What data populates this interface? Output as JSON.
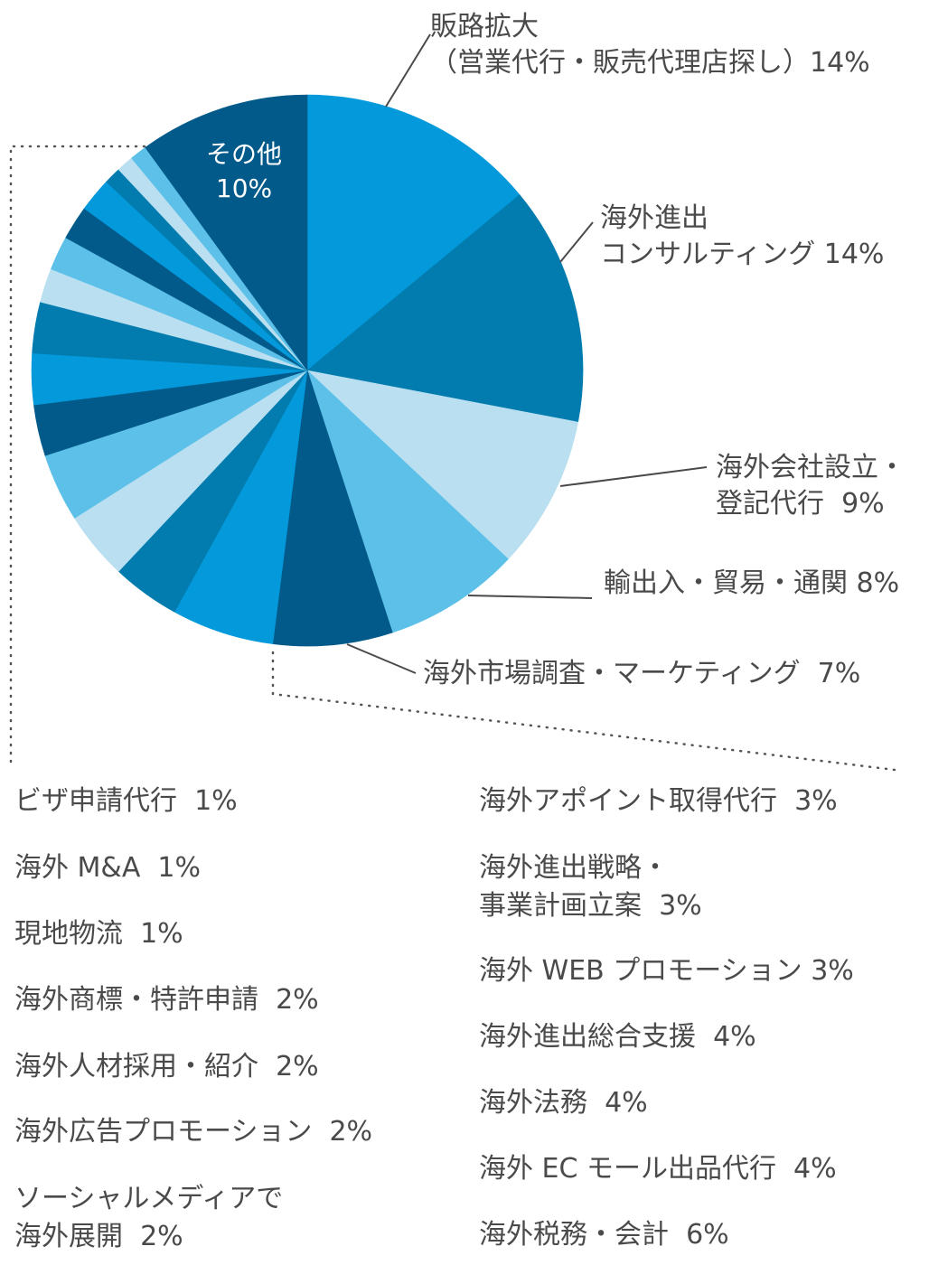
{
  "chart_data": {
    "type": "pie",
    "start": "top, clockwise",
    "slices": [
      {
        "label": "販路拡大\n（営業代行・販売代理店探し）",
        "value": 14,
        "display": "14%",
        "color": "#0399DB"
      },
      {
        "label": "海外進出\nコンサルティング",
        "value": 14,
        "display": "14%",
        "color": "#027CAF"
      },
      {
        "label": "海外会社設立・\n登記代行",
        "value": 9,
        "display": "9%",
        "color": "#B9DFF0"
      },
      {
        "label": "輸出入・貿易・通関",
        "value": 8,
        "display": "8%",
        "color": "#5CC0E8"
      },
      {
        "label": "海外市場調査・マーケティング",
        "value": 7,
        "display": "7%",
        "color": "#025A8A"
      },
      {
        "label": "海外税務・会計",
        "value": 6,
        "display": "6%",
        "color": "#0399DB"
      },
      {
        "label": "海外 EC モール出品代行",
        "value": 4,
        "display": "4%",
        "color": "#027CAF"
      },
      {
        "label": "海外法務",
        "value": 4,
        "display": "4%",
        "color": "#B9DFF0"
      },
      {
        "label": "海外進出総合支援",
        "value": 4,
        "display": "4%",
        "color": "#5CC0E8"
      },
      {
        "label": "海外 WEB プロモーション",
        "value": 3,
        "display": "3%",
        "color": "#025A8A"
      },
      {
        "label": "海外進出戦略・\n事業計画立案",
        "value": 3,
        "display": "3%",
        "color": "#0399DB"
      },
      {
        "label": "海外アポイント取得代行",
        "value": 3,
        "display": "3%",
        "color": "#027CAF"
      },
      {
        "label": "ソーシャルメディアで\n海外展開",
        "value": 2,
        "display": "2%",
        "color": "#B9DFF0"
      },
      {
        "label": "海外広告プロモーション",
        "value": 2,
        "display": "2%",
        "color": "#5CC0E8"
      },
      {
        "label": "海外人材採用・紹介",
        "value": 2,
        "display": "2%",
        "color": "#025A8A"
      },
      {
        "label": "海外商標・特許申請",
        "value": 2,
        "display": "2%",
        "color": "#0399DB"
      },
      {
        "label": "現地物流",
        "value": 1,
        "display": "1%",
        "color": "#027CAF"
      },
      {
        "label": "海外 M&A",
        "value": 1,
        "display": "1%",
        "color": "#B9DFF0"
      },
      {
        "label": "ビザ申請代行",
        "value": 1,
        "display": "1%",
        "color": "#5CC0E8"
      },
      {
        "label": "その他",
        "value": 10,
        "display": "10%",
        "color": "#025A8A"
      }
    ]
  },
  "labels": {
    "hanro": "販路拡大\n（営業代行・販売代理店探し）14%",
    "consulting": "海外進出\nコンサルティング 14%",
    "setsuritsu": "海外会社設立・\n登記代行  9%",
    "yushutsu": "輸出入・貿易・通関 8%",
    "chosa": "海外市場調査・マーケティング  7%",
    "sonota": "その他\n10%"
  },
  "legend_left": [
    "ビザ申請代行  1%",
    "海外 M&A  1%",
    "現地物流  1%",
    "海外商標・特許申請  2%",
    "海外人材採用・紹介  2%",
    "海外広告プロモーション  2%",
    "ソーシャルメディアで\n海外展開  2%"
  ],
  "legend_right": [
    "海外アポイント取得代行  3%",
    "海外進出戦略・\n事業計画立案  3%",
    "海外 WEB プロモーション 3%",
    "海外進出総合支援  4%",
    "海外法務  4%",
    "海外 EC モール出品代行  4%",
    "海外税務・会計  6%"
  ]
}
